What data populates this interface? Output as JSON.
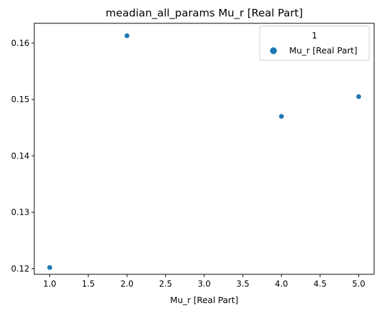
{
  "chart_data": {
    "type": "scatter",
    "title": "meadian_all_params Mu_r [Real Part]",
    "xlabel": "Mu_r [Real Part]",
    "ylabel": "",
    "xlim": [
      0.8,
      5.2
    ],
    "ylim": [
      0.119,
      0.1635
    ],
    "xticks": [
      1.0,
      1.5,
      2.0,
      2.5,
      3.0,
      3.5,
      4.0,
      4.5,
      5.0
    ],
    "xtick_labels": [
      "1.0",
      "1.5",
      "2.0",
      "2.5",
      "3.0",
      "3.5",
      "4.0",
      "4.5",
      "5.0"
    ],
    "yticks": [
      0.12,
      0.13,
      0.14,
      0.15,
      0.16
    ],
    "ytick_labels": [
      "0.12",
      "0.13",
      "0.14",
      "0.15",
      "0.16"
    ],
    "grid": false,
    "legend": {
      "title": "1",
      "placement": "top-right"
    },
    "series": [
      {
        "name": "Mu_r [Real Part]",
        "color": "#1f77b4",
        "x": [
          1,
          2,
          4,
          5
        ],
        "y": [
          0.1202,
          0.1613,
          0.147,
          0.1505
        ]
      }
    ]
  }
}
